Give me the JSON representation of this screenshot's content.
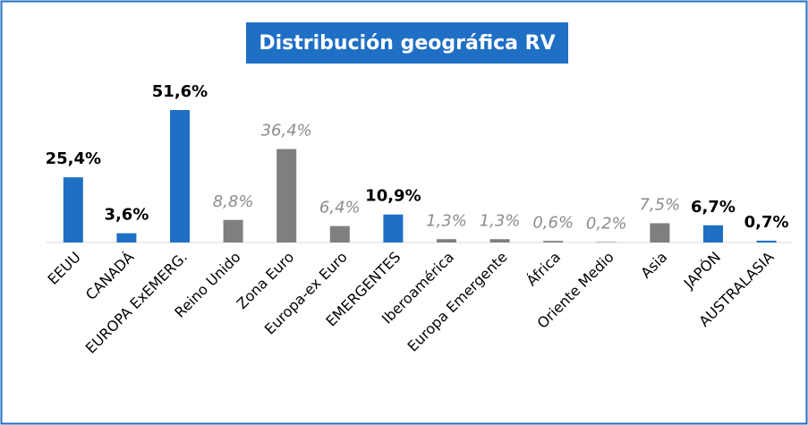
{
  "chart_data": {
    "type": "bar",
    "title": "Distribución geográfica RV",
    "categories": [
      "EEUU",
      "CANADÁ",
      "EUROPA ExEMERG.",
      "Reino Unido",
      "Zona Euro",
      "Europa-ex Euro",
      "EMERGENTES",
      "Iberoamérica",
      "Europa Emergente",
      "África",
      "Oriente Medio",
      "Asia",
      "JAPÓN",
      "AUSTRALASIA"
    ],
    "values": [
      25.4,
      3.6,
      51.6,
      8.8,
      36.4,
      6.4,
      10.9,
      1.3,
      1.3,
      0.6,
      0.2,
      7.5,
      6.7,
      0.7
    ],
    "value_labels": [
      "25,4%",
      "3,6%",
      "51,6%",
      "8,8%",
      "36,4%",
      "6,4%",
      "10,9%",
      "1,3%",
      "1,3%",
      "0,6%",
      "0,2%",
      "7,5%",
      "6,7%",
      "0,7%"
    ],
    "colors": [
      "#1f6fc5",
      "#1f6fc5",
      "#1f6fc5",
      "#7f7f7f",
      "#7f7f7f",
      "#7f7f7f",
      "#1f6fc5",
      "#7f7f7f",
      "#7f7f7f",
      "#7f7f7f",
      "#7f7f7f",
      "#7f7f7f",
      "#1f6fc5",
      "#1f6fc5"
    ]
  }
}
